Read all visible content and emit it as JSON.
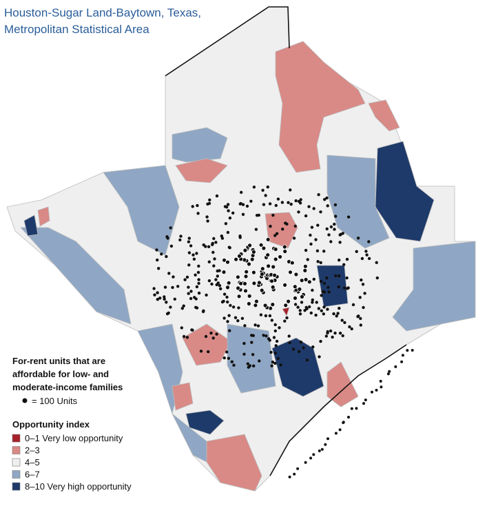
{
  "title": [
    "Houston-Sugar Land-Baytown, Texas,",
    "Metropolitan Statistical Area"
  ],
  "legend": {
    "units_title": [
      "For-rent units that are",
      "affordable for low- and",
      "moderate-income families"
    ],
    "units_key": "= 100 Units",
    "opportunity_title": "Opportunity index",
    "items": [
      {
        "label": "0–1 Very low opportunity",
        "color": "#a8212a"
      },
      {
        "label": "2–3",
        "color": "#d98a86"
      },
      {
        "label": "4–5",
        "color": "#efeff0"
      },
      {
        "label": "6–7",
        "color": "#8fa7c4"
      },
      {
        "label": "8–10 Very high opportunity",
        "color": "#1e3a6a"
      }
    ]
  }
}
